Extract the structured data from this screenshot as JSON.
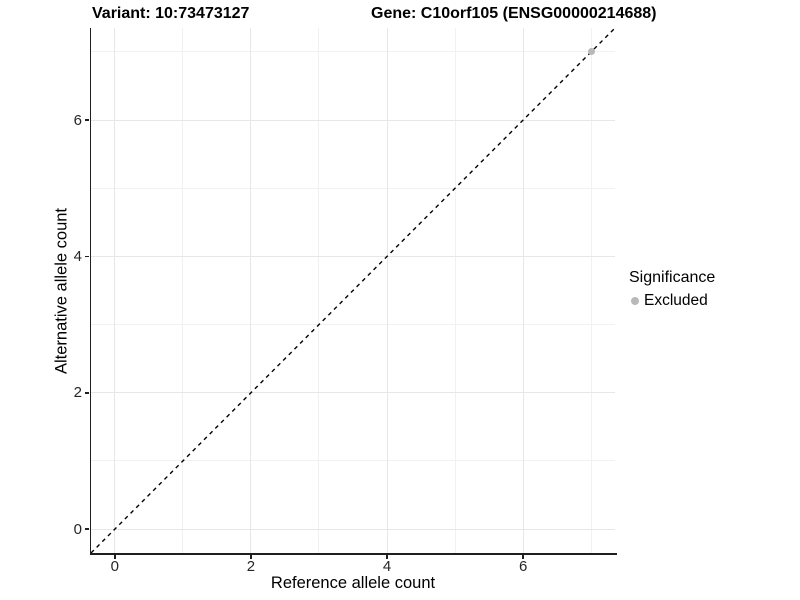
{
  "chart_data": {
    "type": "scatter",
    "title_left": "Variant: 10:73473127",
    "title_right": "Gene: C10orf105 (ENSG00000214688)",
    "xlabel": "Reference allele count",
    "ylabel": "Alternative allele count",
    "xlim": [
      -0.35,
      7.35
    ],
    "ylim": [
      -0.35,
      7.35
    ],
    "x_ticks": [
      0,
      2,
      4,
      6
    ],
    "y_ticks": [
      0,
      2,
      4,
      6
    ],
    "x_minor_gridlines": [
      1,
      3,
      5,
      7
    ],
    "y_minor_gridlines": [
      1,
      3,
      5,
      7
    ],
    "grid": "major and minor gridlines on, white panel",
    "reference_line": {
      "kind": "identity",
      "equation": "y = x",
      "linetype": "dashed",
      "color": "#000000"
    },
    "series": [
      {
        "name": "Excluded",
        "color": "#b9b9b9",
        "points": [
          {
            "x": 7,
            "y": 7
          }
        ]
      }
    ],
    "legend": {
      "title": "Significance",
      "position": "right",
      "items": [
        {
          "label": "Excluded",
          "color": "#b9b9b9"
        }
      ]
    },
    "style": {
      "background": "#ffffff",
      "grid_major_color": "#e7e7e7",
      "grid_minor_color": "#f1f1f1",
      "axis_line_color": "#1f1f1f",
      "tick_label_color": "#262626"
    }
  }
}
